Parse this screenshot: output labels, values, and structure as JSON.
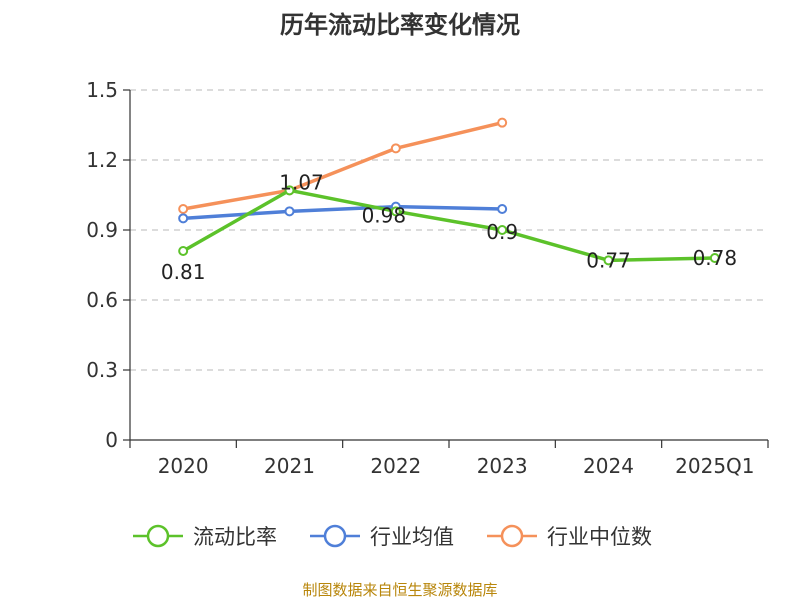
{
  "chart_data": {
    "type": "line",
    "title": "历年流动比率变化情况",
    "categories": [
      "2020",
      "2021",
      "2022",
      "2023",
      "2024",
      "2025Q1"
    ],
    "ylim": [
      0,
      1.5
    ],
    "yticks": [
      "0",
      "0.3",
      "0.6",
      "0.9",
      "1.2",
      "1.5"
    ],
    "grid": true,
    "legend_position": "bottom",
    "series": [
      {
        "name": "流动比率",
        "color": "#5cc22a",
        "values": [
          0.81,
          1.07,
          0.98,
          0.9,
          0.77,
          0.78
        ],
        "labels": [
          "0.81",
          "1.07",
          "0.98",
          "0.9",
          "0.77",
          "0.78"
        ]
      },
      {
        "name": "行业均值",
        "color": "#4f7fd8",
        "values": [
          0.95,
          0.98,
          1.0,
          0.99,
          null,
          null
        ]
      },
      {
        "name": "行业中位数",
        "color": "#f5915a",
        "values": [
          0.99,
          1.07,
          1.25,
          1.36,
          null,
          null
        ]
      }
    ]
  },
  "source_text": "制图数据来自恒生聚源数据库"
}
